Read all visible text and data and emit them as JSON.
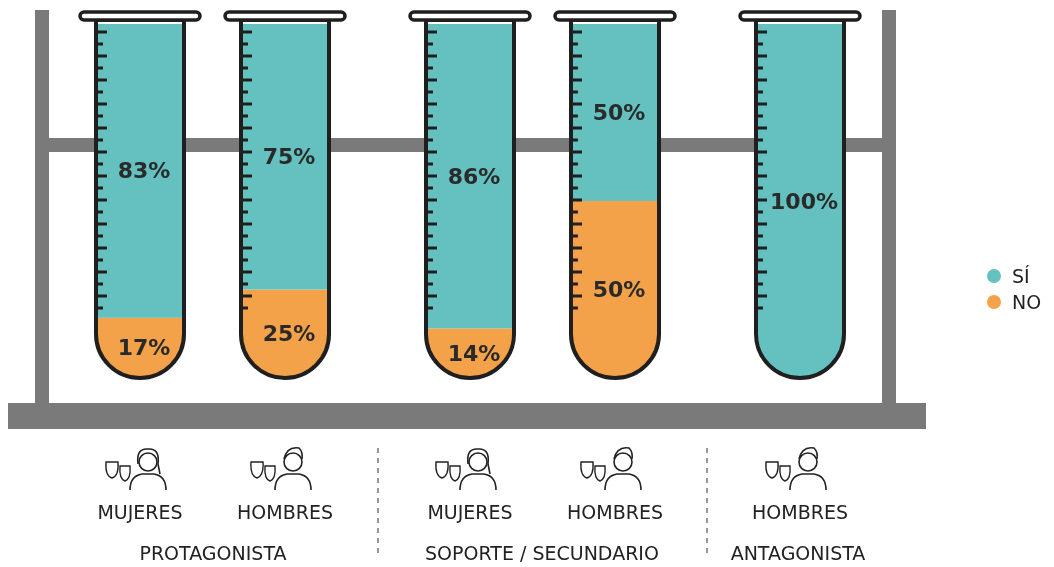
{
  "chart_data": {
    "type": "bar",
    "stacked": true,
    "categories": [
      "MUJERES",
      "HOMBRES",
      "MUJERES",
      "HOMBRES",
      "HOMBRES"
    ],
    "ylim": [
      0,
      100
    ],
    "legend": "right",
    "series": [
      {
        "name": "NO",
        "color": "#f4a24a",
        "values": [
          17,
          25,
          14,
          50,
          0
        ],
        "value_labels": [
          "17%",
          "25%",
          "14%",
          "50%",
          null
        ]
      },
      {
        "name": "SÍ",
        "color": "#64c1bf",
        "values": [
          83,
          75,
          86,
          50,
          100
        ],
        "value_labels": [
          "83%",
          "75%",
          "86%",
          "50%",
          "100%"
        ]
      }
    ],
    "annotations": [
      "PROTAGONISTA",
      "SOPORTE / SECUNDARIO",
      "ANTAGONISTA"
    ]
  }
}
